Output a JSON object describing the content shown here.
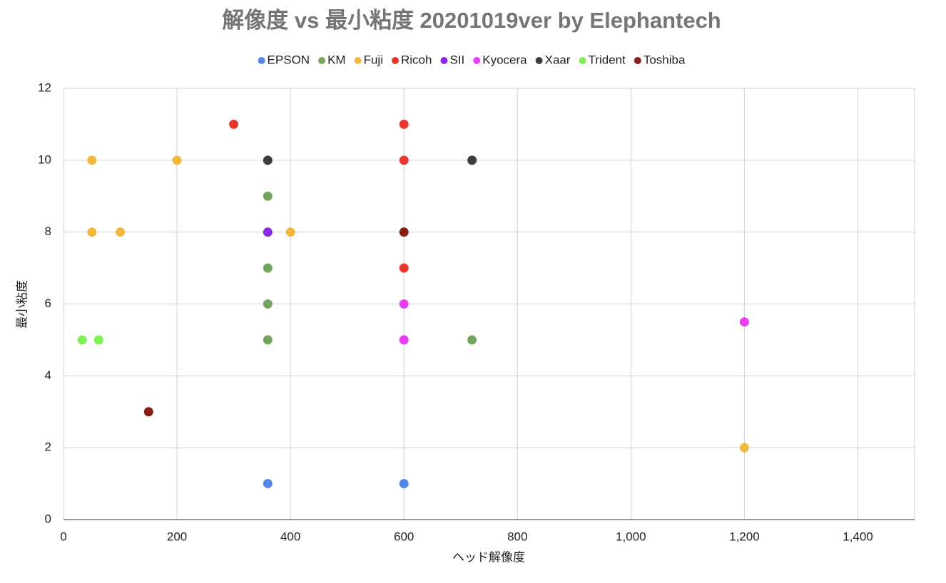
{
  "chart_data": {
    "type": "scatter",
    "title": "解像度 vs 最小粘度 20201019ver by Elephantech",
    "x_label": "ヘッド解像度",
    "y_label": "最小粘度",
    "xlim": [
      0,
      1500
    ],
    "ylim": [
      0,
      12
    ],
    "xticks": [
      0,
      200,
      400,
      600,
      800,
      {
        "value": 1000,
        "label": "1,000"
      },
      {
        "value": 1200,
        "label": "1,200"
      },
      {
        "value": 1400,
        "label": "1,400"
      }
    ],
    "yticks": [
      0,
      2,
      4,
      6,
      8,
      10,
      12
    ],
    "grid": true,
    "legend": "top",
    "series": [
      {
        "name": "EPSON",
        "color": "#4f86e8",
        "x": [
          360,
          600
        ],
        "y": [
          1,
          1
        ]
      },
      {
        "name": "KM",
        "color": "#74a55c",
        "x": [
          360,
          360,
          360,
          360,
          720
        ],
        "y": [
          9,
          7,
          6,
          5,
          5
        ]
      },
      {
        "name": "Fuji",
        "color": "#f2b73d",
        "x": [
          50,
          200,
          50,
          100,
          400,
          1200
        ],
        "y": [
          10,
          10,
          8,
          8,
          8,
          2
        ]
      },
      {
        "name": "Ricoh",
        "color": "#e8382d",
        "x": [
          300,
          600,
          600,
          600
        ],
        "y": [
          11,
          11,
          10,
          7
        ]
      },
      {
        "name": "SII",
        "color": "#8a2be2",
        "x": [
          360
        ],
        "y": [
          8
        ]
      },
      {
        "name": "Kyocera",
        "color": "#e63ef0",
        "x": [
          600,
          600,
          1200
        ],
        "y": [
          6,
          5,
          5.5
        ]
      },
      {
        "name": "Xaar",
        "color": "#3d3d3d",
        "x": [
          360,
          720
        ],
        "y": [
          10,
          10
        ]
      },
      {
        "name": "Trident",
        "color": "#7ef052",
        "x": [
          33,
          62
        ],
        "y": [
          5,
          5
        ]
      },
      {
        "name": "Toshiba",
        "color": "#8c1c17",
        "x": [
          150,
          600
        ],
        "y": [
          3,
          8
        ]
      }
    ]
  }
}
